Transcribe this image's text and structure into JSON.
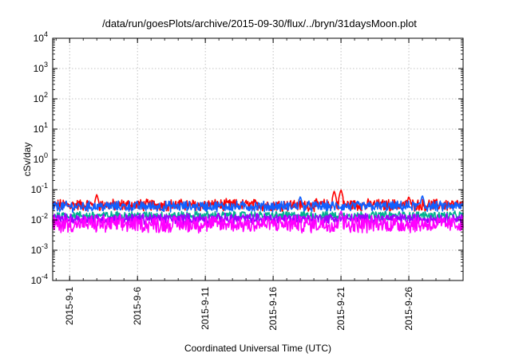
{
  "chart_data": {
    "type": "line",
    "title": "/data/run/goesPlots/archive/2015-09-30/flux/../bryn/31daysMoon.plot",
    "xlabel": "Coordinated Universal Time (UTC)",
    "ylabel": "cSv/day",
    "yscale": "log",
    "ylim": [
      0.0001,
      10000
    ],
    "y_ticks": [
      {
        "value": 0.0001,
        "base": "10",
        "exp": "-4"
      },
      {
        "value": 0.001,
        "base": "10",
        "exp": "-3"
      },
      {
        "value": 0.01,
        "base": "10",
        "exp": "-2"
      },
      {
        "value": 0.1,
        "base": "10",
        "exp": "-1"
      },
      {
        "value": 1,
        "base": "10",
        "exp": "0"
      },
      {
        "value": 10,
        "base": "10",
        "exp": "1"
      },
      {
        "value": 100,
        "base": "10",
        "exp": "2"
      },
      {
        "value": 1000,
        "base": "10",
        "exp": "3"
      },
      {
        "value": 10000,
        "base": "10",
        "exp": "4"
      }
    ],
    "xlim": [
      "2015-08-30 18:00",
      "2015-09-30 00:00"
    ],
    "x_ticks": [
      "2015-9-1",
      "2015-9-6",
      "2015-9-11",
      "2015-9-16",
      "2015-9-21",
      "2015-9-26"
    ],
    "grid": true,
    "legend": "none",
    "series": [
      {
        "color": "#ff0000",
        "level": 0.031,
        "spread": 0.17,
        "peaks": [
          {
            "date": "2015-09-03",
            "value": 0.07
          },
          {
            "date": "2015-09-20 12:00",
            "value": 0.09
          },
          {
            "date": "2015-09-21 00:00",
            "value": 0.1
          },
          {
            "date": "2015-09-26",
            "value": 0.06
          }
        ]
      },
      {
        "color": "#1060ff",
        "level": 0.028,
        "spread": 0.15,
        "peaks": [
          {
            "date": "2015-09-18",
            "value": 0.06
          },
          {
            "date": "2015-09-27",
            "value": 0.065
          }
        ]
      },
      {
        "color": "#00b090",
        "level": 0.014,
        "spread": 0.12,
        "peaks": []
      },
      {
        "color": "#a000ff",
        "level": 0.011,
        "spread": 0.15,
        "peaks": []
      },
      {
        "color": "#ff00ff",
        "level": 0.0072,
        "spread": 0.24,
        "peaks": [
          {
            "date": "2015-09-21",
            "value": 0.02
          }
        ]
      }
    ]
  }
}
